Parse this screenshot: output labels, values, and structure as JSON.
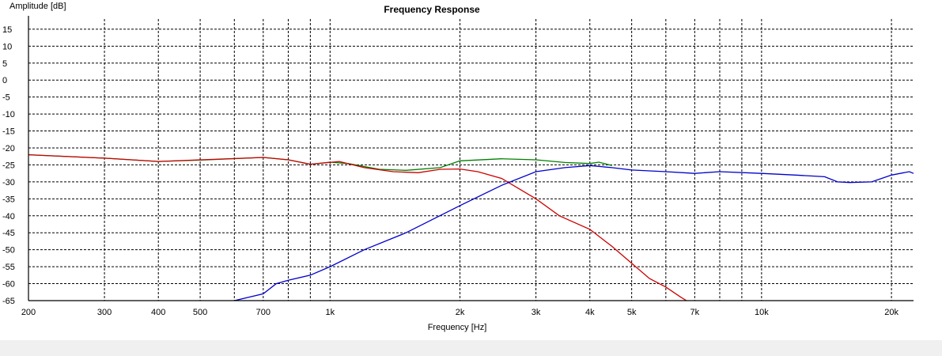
{
  "chart_data": {
    "type": "line",
    "title": "Frequency Response",
    "xlabel": "Frequency [Hz]",
    "ylabel": "Amplitude [dB]",
    "xscale": "log",
    "xlim": [
      200,
      22500
    ],
    "ylim": [
      -65,
      18
    ],
    "grid": true,
    "x_tick_labels": [
      {
        "v": 200,
        "label": "200"
      },
      {
        "v": 300,
        "label": "300"
      },
      {
        "v": 400,
        "label": "400"
      },
      {
        "v": 500,
        "label": "500"
      },
      {
        "v": 700,
        "label": "700"
      },
      {
        "v": 1000,
        "label": "1k"
      },
      {
        "v": 2000,
        "label": "2k"
      },
      {
        "v": 3000,
        "label": "3k"
      },
      {
        "v": 4000,
        "label": "4k"
      },
      {
        "v": 5000,
        "label": "5k"
      },
      {
        "v": 7000,
        "label": "7k"
      },
      {
        "v": 10000,
        "label": "10k"
      },
      {
        "v": 20000,
        "label": "20k"
      }
    ],
    "x_grid": [
      300,
      400,
      500,
      600,
      700,
      800,
      900,
      1000,
      2000,
      3000,
      4000,
      5000,
      6000,
      7000,
      8000,
      9000,
      10000,
      20000
    ],
    "y_ticks": [
      15,
      10,
      5,
      0,
      -5,
      -10,
      -15,
      -20,
      -25,
      -30,
      -35,
      -40,
      -45,
      -50,
      -55,
      -60,
      -65
    ],
    "series": [
      {
        "color": "#008000",
        "points": [
          [
            200,
            -22
          ],
          [
            300,
            -23
          ],
          [
            400,
            -24
          ],
          [
            500,
            -23.6
          ],
          [
            700,
            -22.8
          ],
          [
            800,
            -23.5
          ],
          [
            900,
            -24.8
          ],
          [
            1000,
            -24.2
          ],
          [
            1100,
            -24.6
          ],
          [
            1300,
            -26.3
          ],
          [
            1500,
            -26.6
          ],
          [
            1800,
            -25.8
          ],
          [
            2000,
            -23.8
          ],
          [
            2500,
            -23.2
          ],
          [
            3000,
            -23.5
          ],
          [
            3500,
            -24.3
          ],
          [
            4000,
            -24.6
          ],
          [
            4200,
            -24.2
          ],
          [
            4500,
            -25.2
          ]
        ]
      },
      {
        "color": "#cc0000",
        "points": [
          [
            200,
            -22
          ],
          [
            300,
            -23
          ],
          [
            400,
            -24
          ],
          [
            500,
            -23.5
          ],
          [
            700,
            -22.8
          ],
          [
            800,
            -23.5
          ],
          [
            900,
            -24.8
          ],
          [
            1050,
            -24.0
          ],
          [
            1200,
            -25.8
          ],
          [
            1400,
            -27.0
          ],
          [
            1600,
            -27.3
          ],
          [
            1800,
            -26.3
          ],
          [
            2000,
            -26.2
          ],
          [
            2200,
            -27.0
          ],
          [
            2500,
            -29.0
          ],
          [
            3000,
            -35.0
          ],
          [
            3400,
            -40.0
          ],
          [
            4000,
            -44.0
          ],
          [
            4500,
            -49.0
          ],
          [
            5000,
            -54.0
          ],
          [
            5500,
            -58.5
          ],
          [
            6000,
            -61.0
          ],
          [
            6500,
            -64.0
          ],
          [
            6700,
            -65.0
          ]
        ]
      },
      {
        "color": "#0000cc",
        "points": [
          [
            600,
            -65
          ],
          [
            700,
            -63
          ],
          [
            750,
            -60
          ],
          [
            800,
            -59
          ],
          [
            900,
            -57.5
          ],
          [
            1000,
            -55
          ],
          [
            1200,
            -50
          ],
          [
            1500,
            -45
          ],
          [
            2000,
            -37
          ],
          [
            2500,
            -31
          ],
          [
            3000,
            -27
          ],
          [
            3500,
            -25.8
          ],
          [
            4000,
            -25.2
          ],
          [
            4500,
            -25.8
          ],
          [
            5000,
            -26.5
          ],
          [
            6000,
            -27
          ],
          [
            7000,
            -27.5
          ],
          [
            8000,
            -27
          ],
          [
            10000,
            -27.5
          ],
          [
            12000,
            -28
          ],
          [
            14000,
            -28.5
          ],
          [
            15000,
            -30
          ],
          [
            16000,
            -30.2
          ],
          [
            18000,
            -30
          ],
          [
            20000,
            -28
          ],
          [
            22000,
            -27
          ],
          [
            22500,
            -27.5
          ]
        ]
      }
    ]
  }
}
